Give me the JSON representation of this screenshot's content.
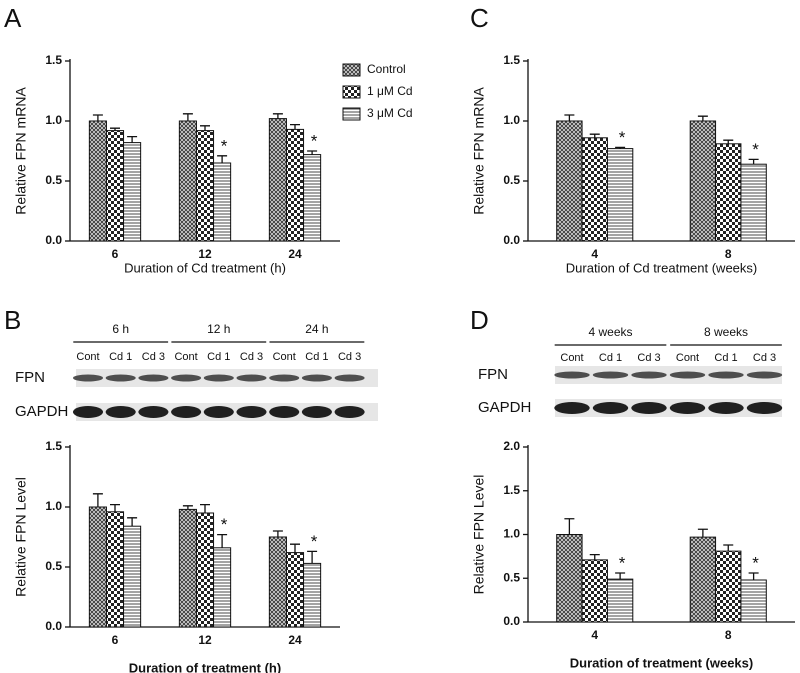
{
  "chart_data": [
    {
      "type": "bar",
      "panel": "A",
      "ylabel": "Relative FPN mRNA",
      "xlabel": "Duration of Cd treatment (h)",
      "categories": [
        "6",
        "12",
        "24"
      ],
      "ylim": [
        0,
        1.5
      ],
      "yticks": [
        {
          "value": 0,
          "label": "0.0"
        },
        {
          "value": 0.5,
          "label": "0.5"
        },
        {
          "value": 1,
          "label": "1.0"
        },
        {
          "value": 1.5,
          "label": "1.5"
        }
      ],
      "legend": "top-right",
      "series": [
        {
          "name": "Control",
          "pattern": "crosshatch",
          "values": [
            1.0,
            1.0,
            1.02
          ],
          "errors": [
            0.05,
            0.06,
            0.04
          ]
        },
        {
          "name": "1 μM Cd",
          "pattern": "checker",
          "values": [
            0.92,
            0.92,
            0.93
          ],
          "errors": [
            0.02,
            0.04,
            0.04
          ]
        },
        {
          "name": "3 μM Cd",
          "pattern": "hlines",
          "values": [
            0.82,
            0.65,
            0.72
          ],
          "errors": [
            0.05,
            0.06,
            0.03
          ],
          "labels": [
            null,
            "*",
            "*"
          ]
        }
      ]
    },
    {
      "type": "bar",
      "panel": "B",
      "ylabel": "Relative FPN Level",
      "xlabel": "Duration of treatment (h)",
      "categories": [
        "6",
        "12",
        "24"
      ],
      "ylim": [
        0,
        1.5
      ],
      "yticks": [
        {
          "value": 0,
          "label": "0.0"
        },
        {
          "value": 0.5,
          "label": "0.5"
        },
        {
          "value": 1,
          "label": "1.0"
        },
        {
          "value": 1.5,
          "label": "1.5"
        }
      ],
      "blot": {
        "groups": [
          "6 h",
          "12 h",
          "24 h"
        ],
        "lanes": [
          "Cont",
          "Cd 1",
          "Cd 3",
          "Cont",
          "Cd 1",
          "Cd 3",
          "Cont",
          "Cd 1",
          "Cd 3"
        ],
        "rows": [
          "FPN",
          "GAPDH"
        ]
      },
      "series": [
        {
          "pattern": "crosshatch",
          "values": [
            1.0,
            0.98,
            0.75
          ],
          "errors": [
            0.11,
            0.03,
            0.05
          ]
        },
        {
          "pattern": "checker",
          "values": [
            0.96,
            0.95,
            0.62
          ],
          "errors": [
            0.06,
            0.07,
            0.07
          ]
        },
        {
          "pattern": "hlines",
          "values": [
            0.84,
            0.66,
            0.53
          ],
          "errors": [
            0.07,
            0.11,
            0.1
          ],
          "labels": [
            null,
            "*",
            "*"
          ]
        }
      ]
    },
    {
      "type": "bar",
      "panel": "C",
      "ylabel": "Relative FPN mRNA",
      "xlabel": "Duration of Cd treatment (weeks)",
      "categories": [
        "4",
        "8"
      ],
      "ylim": [
        0,
        1.5
      ],
      "yticks": [
        {
          "value": 0,
          "label": "0.0"
        },
        {
          "value": 0.5,
          "label": "0.5"
        },
        {
          "value": 1,
          "label": "1.0"
        },
        {
          "value": 1.5,
          "label": "1.5"
        }
      ],
      "series": [
        {
          "pattern": "crosshatch",
          "values": [
            1.0,
            1.0
          ],
          "errors": [
            0.05,
            0.04
          ]
        },
        {
          "pattern": "checker",
          "values": [
            0.86,
            0.81
          ],
          "errors": [
            0.03,
            0.03
          ]
        },
        {
          "pattern": "hlines",
          "values": [
            0.77,
            0.64
          ],
          "errors": [
            0.01,
            0.04
          ],
          "labels": [
            "*",
            "*"
          ]
        }
      ]
    },
    {
      "type": "bar",
      "panel": "D",
      "ylabel": "Relative FPN Level",
      "xlabel": "Duration of treatment (weeks)",
      "categories": [
        "4",
        "8"
      ],
      "ylim": [
        0,
        2
      ],
      "yticks": [
        {
          "value": 0,
          "label": "0.0"
        },
        {
          "value": 0.5,
          "label": "0.5"
        },
        {
          "value": 1,
          "label": "1.0"
        },
        {
          "value": 1.5,
          "label": "1.5"
        },
        {
          "value": 2,
          "label": "2.0"
        }
      ],
      "blot": {
        "groups": [
          "4 weeks",
          "8 weeks"
        ],
        "lanes": [
          "Cont",
          "Cd 1",
          "Cd 3",
          "Cont",
          "Cd 1",
          "Cd 3"
        ],
        "rows": [
          "FPN",
          "GAPDH"
        ]
      },
      "series": [
        {
          "pattern": "crosshatch",
          "values": [
            1.0,
            0.97
          ],
          "errors": [
            0.18,
            0.09
          ]
        },
        {
          "pattern": "checker",
          "values": [
            0.71,
            0.81
          ],
          "errors": [
            0.06,
            0.07
          ]
        },
        {
          "pattern": "hlines",
          "values": [
            0.49,
            0.48
          ],
          "errors": [
            0.07,
            0.08
          ],
          "labels": [
            "*",
            "*"
          ]
        }
      ]
    }
  ]
}
